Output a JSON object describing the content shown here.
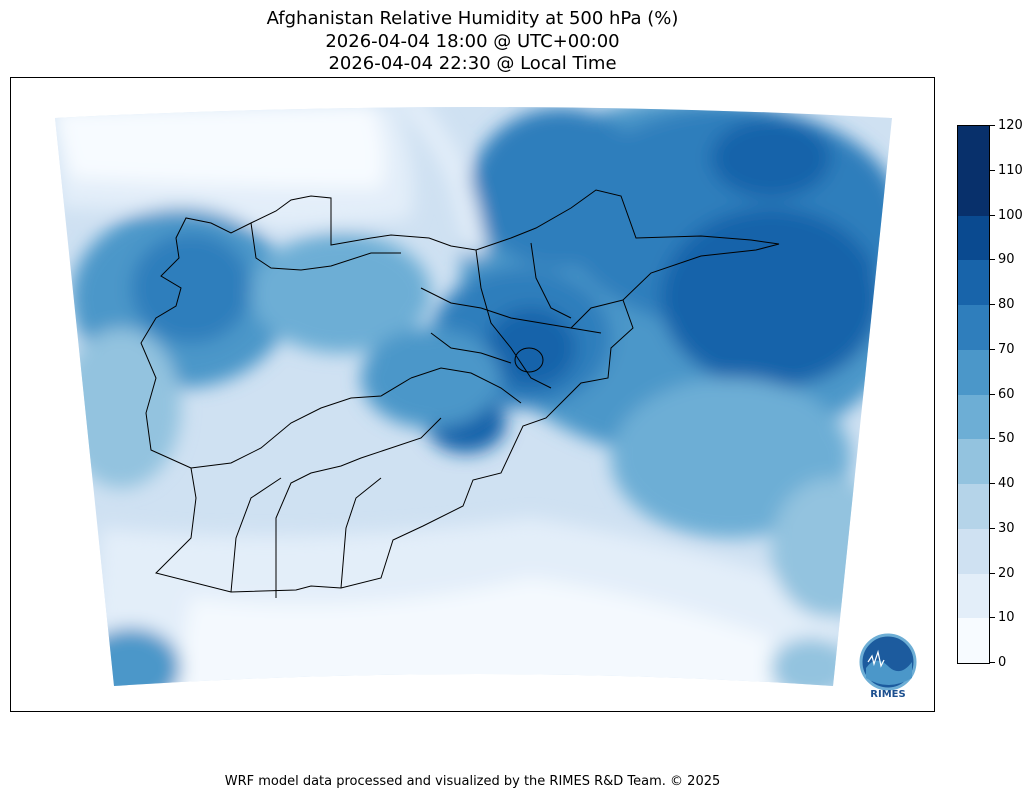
{
  "title": {
    "line1": "Afghanistan Relative Humidity at 500 hPa (%)",
    "line2": "2026-04-04 18:00 @ UTC+00:00",
    "line3": "2026-04-04 22:30 @ Local Time"
  },
  "colorbar": {
    "ticks": [
      "0",
      "10",
      "20",
      "30",
      "40",
      "50",
      "60",
      "70",
      "80",
      "90",
      "100",
      "110",
      "120"
    ],
    "min": 0,
    "max": 120,
    "colors": [
      "#f7fbff",
      "#e3eef9",
      "#cfe1f2",
      "#b5d4e9",
      "#93c3df",
      "#6daed5",
      "#4b97c9",
      "#2f7ebc",
      "#1864aa",
      "#0a4a90",
      "#08306b",
      "#08306b"
    ]
  },
  "logo": {
    "text": "RIMES"
  },
  "footer": "WRF model data processed and visualized by the RIMES R&D Team. © 2025"
}
